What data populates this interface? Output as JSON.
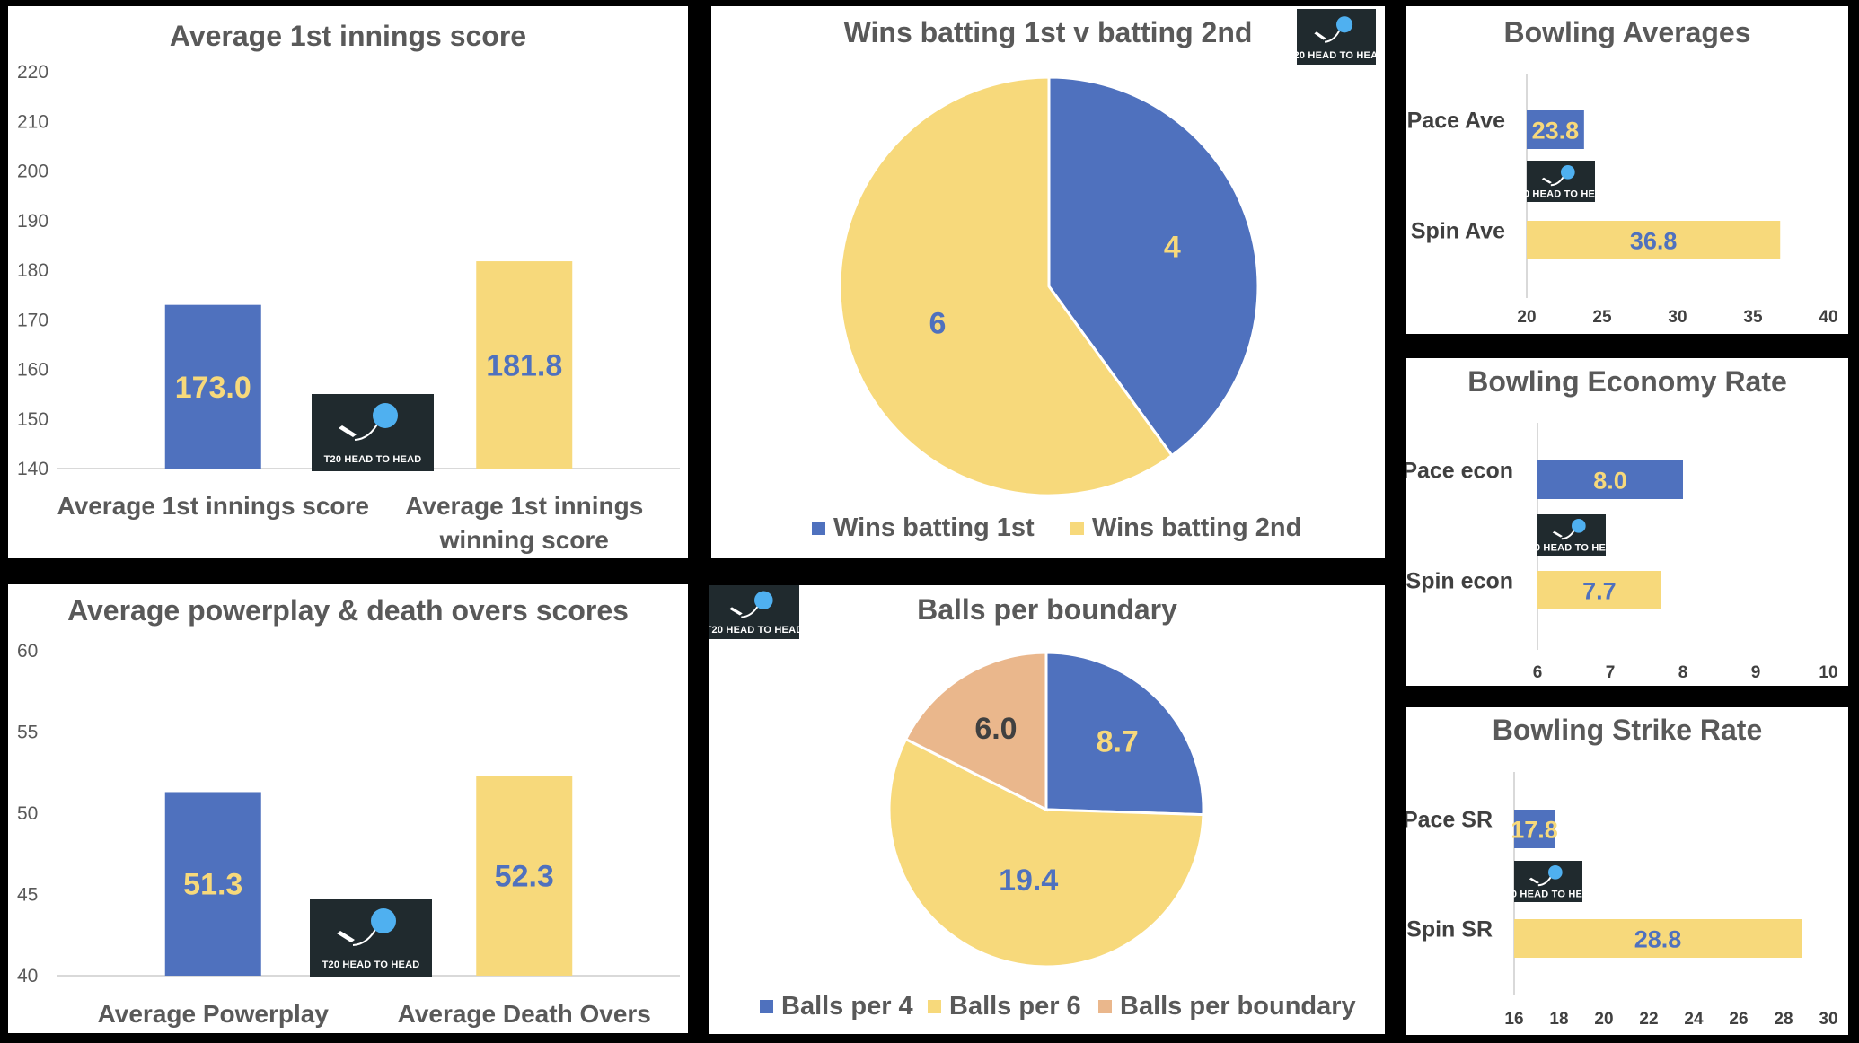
{
  "colors": {
    "blue": "#4F71BE",
    "yellow": "#F7D97B",
    "peach": "#EAB78C",
    "gray_text": "#595959",
    "dark_text": "#404040",
    "logo_bg": "#202A2E",
    "ball_blue": "#4FB0F0"
  },
  "logo": {
    "text": "T20 HEAD TO HEAD"
  },
  "charts": {
    "avg_first_innings": {
      "chart_data": {
        "type": "bar",
        "title": "Average 1st innings score",
        "categories": [
          "Average 1st innings score",
          "Average 1st innings winning score"
        ],
        "category_lines": [
          [
            "Average 1st innings score"
          ],
          [
            "Average 1st innings",
            "winning score"
          ]
        ],
        "values": [
          173.0,
          181.8
        ],
        "value_labels": [
          "173.0",
          "181.8"
        ],
        "colors": [
          "#4F71BE",
          "#F7D97B"
        ],
        "label_colors": [
          "#F7D97B",
          "#4F71BE"
        ],
        "yticks": [
          "140",
          "150",
          "160",
          "170",
          "180",
          "190",
          "200",
          "210",
          "220"
        ],
        "ylim": [
          140,
          220
        ]
      }
    },
    "wins_batting": {
      "chart_data": {
        "type": "pie",
        "title": "Wins batting 1st v batting 2nd",
        "labels": [
          "Wins batting 1st",
          "Wins batting 2nd"
        ],
        "values": [
          4,
          6
        ],
        "value_labels": [
          "4",
          "6"
        ],
        "colors": [
          "#4F71BE",
          "#F7D97B"
        ],
        "label_colors": [
          "#F7D97B",
          "#4F71BE"
        ],
        "legend": "bottom"
      }
    },
    "bowling_averages": {
      "chart_data": {
        "type": "bar",
        "orientation": "horizontal",
        "title": "Bowling Averages",
        "categories": [
          "Pace Ave",
          "Spin Ave"
        ],
        "values": [
          23.8,
          36.8
        ],
        "value_labels": [
          "23.8",
          "36.8"
        ],
        "colors": [
          "#4F71BE",
          "#F7D97B"
        ],
        "label_colors": [
          "#F7D97B",
          "#4F71BE"
        ],
        "xticks": [
          "20",
          "25",
          "30",
          "35",
          "40"
        ],
        "xlim": [
          20,
          40
        ]
      }
    },
    "bowling_economy": {
      "chart_data": {
        "type": "bar",
        "orientation": "horizontal",
        "title": "Bowling Economy Rate",
        "categories": [
          "Pace econ",
          "Spin econ"
        ],
        "values": [
          8.0,
          7.7
        ],
        "value_labels": [
          "8.0",
          "7.7"
        ],
        "colors": [
          "#4F71BE",
          "#F7D97B"
        ],
        "label_colors": [
          "#F7D97B",
          "#4F71BE"
        ],
        "xticks": [
          "6",
          "7",
          "8",
          "9",
          "10"
        ],
        "xlim": [
          6,
          10
        ]
      }
    },
    "bowling_strike_rate": {
      "chart_data": {
        "type": "bar",
        "orientation": "horizontal",
        "title": "Bowling Strike Rate",
        "categories": [
          "Pace SR",
          "Spin SR"
        ],
        "values": [
          17.8,
          28.8
        ],
        "value_labels": [
          "17.8",
          "28.8"
        ],
        "colors": [
          "#4F71BE",
          "#F7D97B"
        ],
        "label_colors": [
          "#F7D97B",
          "#4F71BE"
        ],
        "xticks": [
          "16",
          "18",
          "20",
          "22",
          "24",
          "26",
          "28",
          "30"
        ],
        "xlim": [
          16,
          30
        ]
      }
    },
    "powerplay_death": {
      "chart_data": {
        "type": "bar",
        "title": "Average powerplay & death overs scores",
        "categories": [
          "Average Powerplay",
          "Average Death Overs"
        ],
        "category_lines": [
          [
            "Average Powerplay"
          ],
          [
            "Average Death Overs"
          ]
        ],
        "values": [
          51.3,
          52.3
        ],
        "value_labels": [
          "51.3",
          "52.3"
        ],
        "colors": [
          "#4F71BE",
          "#F7D97B"
        ],
        "label_colors": [
          "#F7D97B",
          "#4F71BE"
        ],
        "yticks": [
          "40",
          "45",
          "50",
          "55",
          "60"
        ],
        "ylim": [
          40,
          60
        ]
      }
    },
    "balls_per_boundary": {
      "chart_data": {
        "type": "pie",
        "title": "Balls per boundary",
        "labels": [
          "Balls per 4",
          "Balls per 6",
          "Balls per boundary"
        ],
        "values": [
          8.7,
          19.4,
          6.0
        ],
        "value_labels": [
          "8.7",
          "19.4",
          "6.0"
        ],
        "colors": [
          "#4F71BE",
          "#F7D97B",
          "#EAB78C"
        ],
        "label_colors": [
          "#F7D97B",
          "#4F71BE",
          "#404040"
        ],
        "legend": "bottom"
      }
    }
  }
}
